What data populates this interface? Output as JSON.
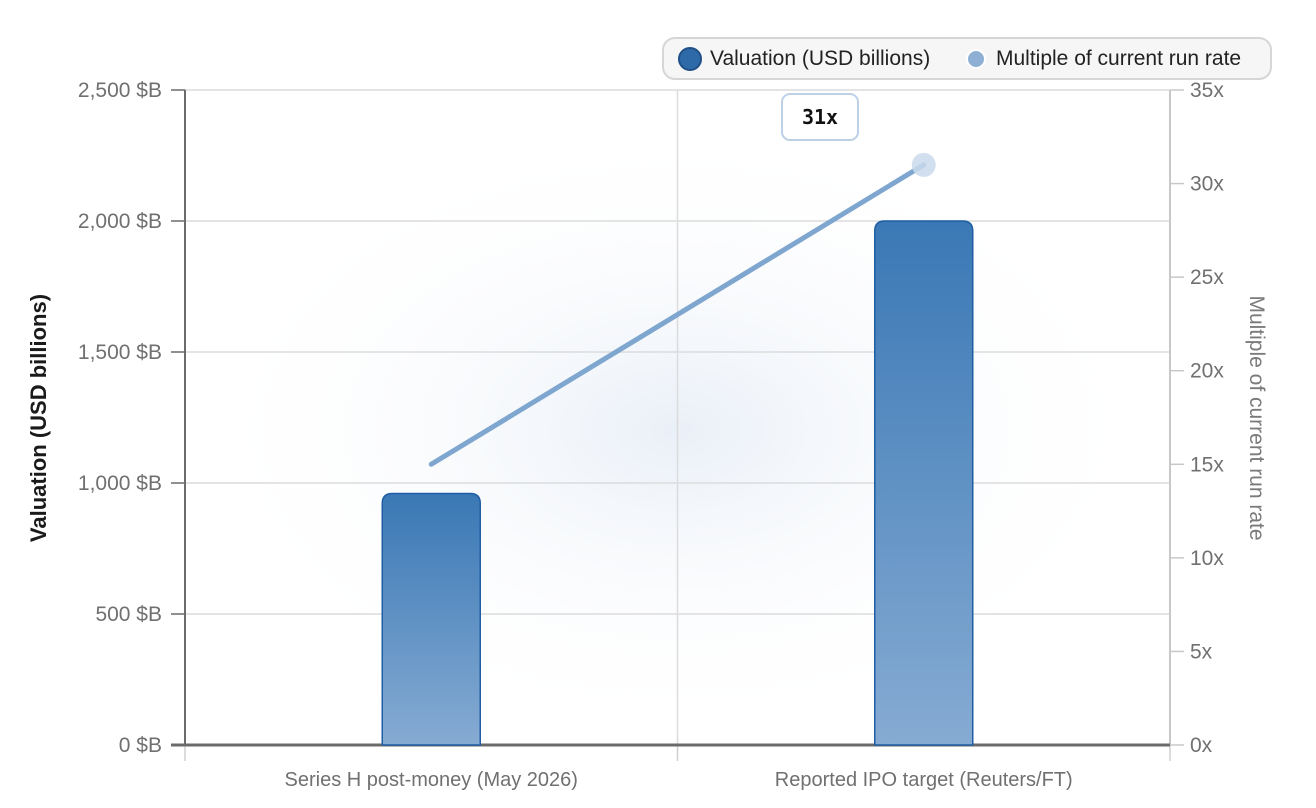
{
  "chart_data": {
    "type": "bar",
    "categories": [
      "Series H post-money (May 2026)",
      "Reported IPO target (Reuters/FT)"
    ],
    "series": [
      {
        "name": "Valuation (USD billions)",
        "kind": "bar",
        "axis": "left",
        "values": [
          960,
          2000
        ],
        "color": "#3a78b5"
      },
      {
        "name": "Multiple of current run rate",
        "kind": "line",
        "axis": "right",
        "values": [
          15,
          31
        ],
        "color": "#7fa6cf"
      }
    ],
    "ylabel": "Valuation (USD billions)",
    "y2label": "Multiple of current run rate",
    "ylim": [
      0,
      2500
    ],
    "y2lim": [
      0,
      35
    ],
    "yticks": [
      "0 $B",
      "500 $B",
      "1,000 $B",
      "1,500 $B",
      "2,000 $B",
      "2,500 $B"
    ],
    "y2ticks": [
      "0x",
      "5x",
      "10x",
      "15x",
      "20x",
      "25x",
      "30x",
      "35x"
    ],
    "annotation": "31x",
    "grid": true,
    "legend_position": "top-right"
  }
}
